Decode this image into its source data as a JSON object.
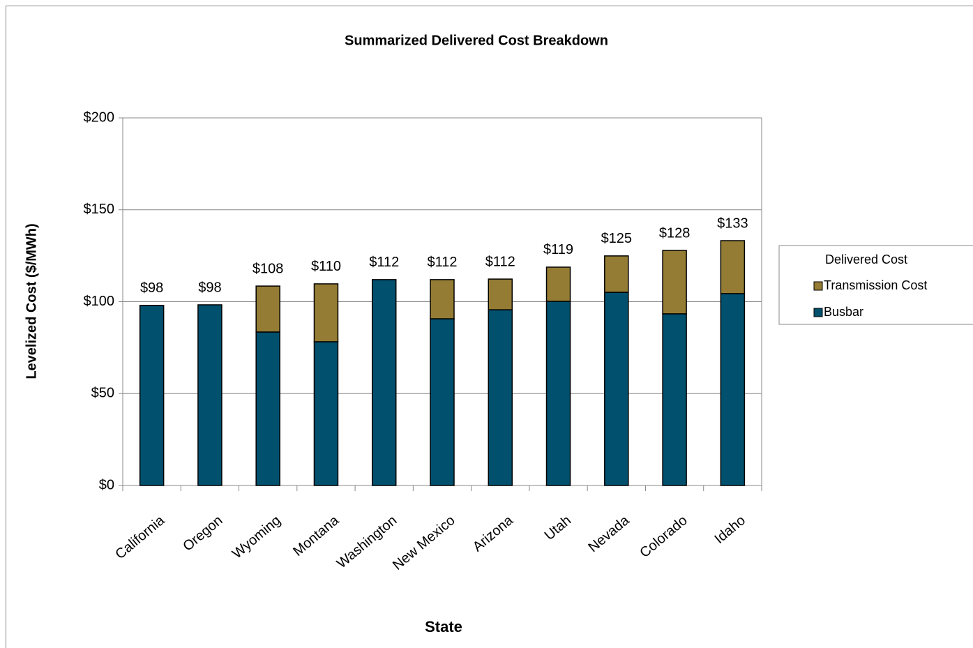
{
  "chart_data": {
    "type": "stacked_bar",
    "title": "Summarized Delivered Cost Breakdown",
    "xlabel": "State",
    "ylabel": "Levelized Cost ($/MWh)",
    "categories": [
      "California",
      "Oregon",
      "Wyoming",
      "Montana",
      "Washington",
      "New Mexico",
      "Arizona",
      "Utah",
      "Nevada",
      "Colorado",
      "Idaho"
    ],
    "series": [
      {
        "name": "Busbar",
        "color": "#00506e",
        "values": [
          98,
          98.3,
          83.5,
          78.2,
          112,
          90.7,
          95.6,
          100.2,
          105.1,
          93.4,
          104.4
        ]
      },
      {
        "name": "Transmission Cost",
        "color": "#947c34",
        "values": [
          0,
          0,
          25,
          31.5,
          0,
          21.3,
          16.7,
          18.6,
          19.8,
          34.5,
          28.8
        ]
      }
    ],
    "total_labels": [
      "$98",
      "$98",
      "$108",
      "$110",
      "$112",
      "$112",
      "$112",
      "$119",
      "$125",
      "$128",
      "$133"
    ],
    "legend_title": "Delivered Cost",
    "legend": "right",
    "ylim": [
      0,
      200
    ],
    "yticks": [
      {
        "value": 0,
        "label": "$0"
      },
      {
        "value": 50,
        "label": "$50"
      },
      {
        "value": 100,
        "label": "$100"
      },
      {
        "value": 150,
        "label": "$150"
      },
      {
        "value": 200,
        "label": "$200"
      }
    ],
    "grid": true
  }
}
